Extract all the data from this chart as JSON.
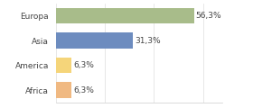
{
  "categories": [
    "Africa",
    "America",
    "Asia",
    "Europa"
  ],
  "values": [
    6.3,
    6.3,
    31.3,
    56.3
  ],
  "bar_colors": [
    "#f0b982",
    "#f5d57a",
    "#6d8cbf",
    "#a8bc8a"
  ],
  "labels": [
    "6,3%",
    "6,3%",
    "31,3%",
    "56,3%"
  ],
  "xlim": [
    0,
    68
  ],
  "background_color": "#ffffff",
  "label_fontsize": 6.5,
  "tick_fontsize": 6.5,
  "bar_height": 0.65
}
